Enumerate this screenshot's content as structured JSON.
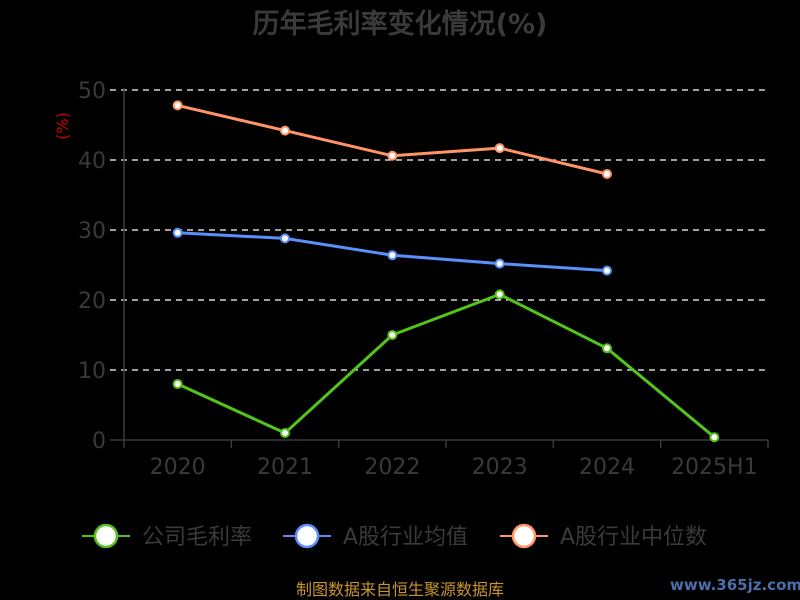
{
  "chart_data": {
    "type": "line",
    "title": "历年毛利率变化情况(%)",
    "ylabel": "(%)",
    "categories": [
      "2020",
      "2021",
      "2022",
      "2023",
      "2024",
      "2025H1"
    ],
    "ylim": [
      0,
      50
    ],
    "yticks": [
      0,
      10,
      20,
      30,
      40,
      50
    ],
    "grid": true,
    "legend_position": "bottom",
    "series": [
      {
        "name": "公司毛利率",
        "color": "#52c41a",
        "values": [
          8.0,
          1.0,
          15.0,
          20.8,
          13.1,
          0.4
        ]
      },
      {
        "name": "A股行业均值",
        "color": "#5b8ff9",
        "values": [
          29.6,
          28.8,
          26.4,
          25.2,
          24.2,
          null
        ]
      },
      {
        "name": "A股行业中位数",
        "color": "#ff9466",
        "values": [
          47.8,
          44.2,
          40.6,
          41.7,
          38.0,
          null
        ]
      }
    ]
  },
  "footer": {
    "source": "制图数据来自恒生聚源数据库",
    "watermark": "www.365jz.com"
  }
}
